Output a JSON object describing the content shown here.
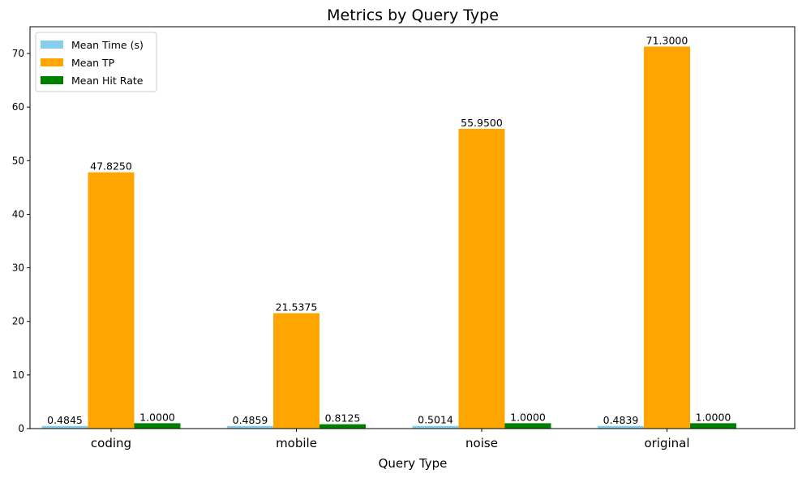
{
  "chart_data": {
    "type": "bar",
    "title": "Metrics by Query Type",
    "xlabel": "Query Type",
    "ylabel": "",
    "categories": [
      "coding",
      "mobile",
      "noise",
      "original"
    ],
    "ylim": [
      0,
      75
    ],
    "yticks": [
      0,
      10,
      20,
      30,
      40,
      50,
      60,
      70
    ],
    "grid": false,
    "legend_position": "top-left",
    "series": [
      {
        "name": "Mean Time (s)",
        "color": "#87ceeb",
        "values": [
          0.4845,
          0.4859,
          0.5014,
          0.4839
        ],
        "labels": [
          "0.4845",
          "0.4859",
          "0.5014",
          "0.4839"
        ]
      },
      {
        "name": "Mean TP",
        "color": "#ffa500",
        "values": [
          47.825,
          21.5375,
          55.95,
          71.3
        ],
        "labels": [
          "47.8250",
          "21.5375",
          "55.9500",
          "71.3000"
        ]
      },
      {
        "name": "Mean Hit Rate",
        "color": "#008000",
        "values": [
          1.0,
          0.8125,
          1.0,
          1.0
        ],
        "labels": [
          "1.0000",
          "0.8125",
          "1.0000",
          "1.0000"
        ]
      }
    ]
  }
}
